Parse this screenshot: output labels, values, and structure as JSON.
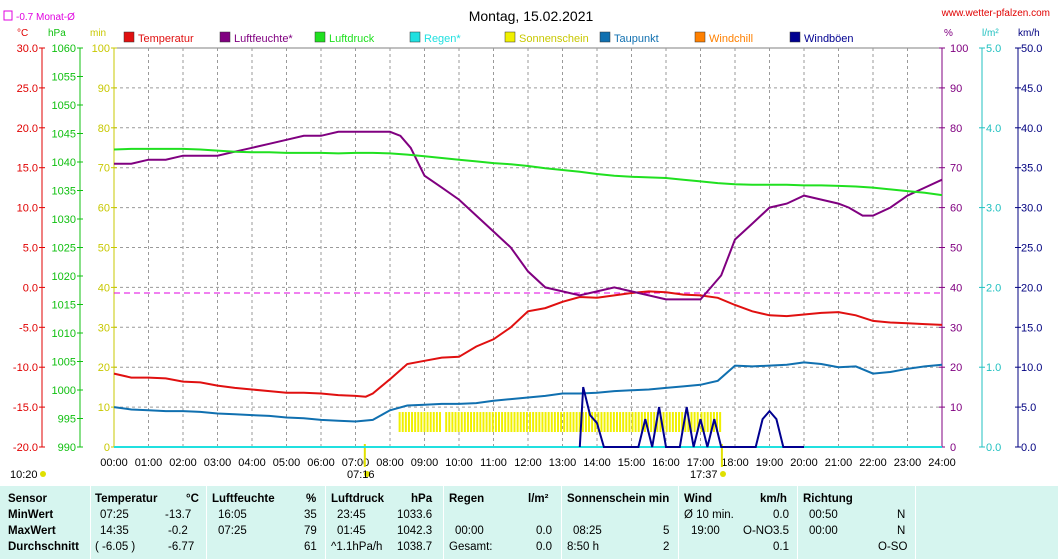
{
  "header": {
    "title": "Montag, 15.02.2021",
    "site": "www.wetter-pfalzen.com",
    "monthly_avg_label": "-0.7 Monat-Ø",
    "unit_temp": "°C",
    "unit_press": "hPa",
    "unit_min": "min",
    "unit_pct": "%",
    "unit_rain": "l/m²",
    "unit_wind": "km/h",
    "sunrise": "07:16",
    "sunset": "17:37"
  },
  "colors": {
    "temperature": "#e01010",
    "humidity": "#800080",
    "pressure": "#20e020",
    "rain": "#20e0e0",
    "sun": "#f0f000",
    "dewpoint": "#1070b0",
    "windchill": "#ff8000",
    "gusts": "#000090",
    "monthly_avg": "#e000e0"
  },
  "legend": [
    {
      "label": "Temperatur",
      "color": "#e01010"
    },
    {
      "label": "Luftfeuchte*",
      "color": "#800080"
    },
    {
      "label": "Luftdruck",
      "color": "#20e020"
    },
    {
      "label": "Regen*",
      "color": "#20e0e0"
    },
    {
      "label": "Sonnenschein",
      "color": "#f0f000"
    },
    {
      "label": "Taupunkt",
      "color": "#1070b0"
    },
    {
      "label": "Windchill",
      "color": "#ff8000"
    },
    {
      "label": "Windböen",
      "color": "#000090"
    }
  ],
  "chart_data": {
    "type": "line",
    "title": "Montag, 15.02.2021",
    "x_ticks": [
      "00:00",
      "01:00",
      "02:00",
      "03:00",
      "04:00",
      "05:00",
      "06:00",
      "07:00",
      "08:00",
      "09:00",
      "10:00",
      "11:00",
      "12:00",
      "13:00",
      "14:00",
      "15:00",
      "16:00",
      "17:00",
      "18:00",
      "19:00",
      "20:00",
      "21:00",
      "22:00",
      "23:00",
      "24:00"
    ],
    "axes": {
      "temp_c": {
        "range": [
          -20,
          30
        ],
        "ticks": [
          "30.0",
          "25.0",
          "20.0",
          "15.0",
          "10.0",
          "5.0",
          "0.0",
          "-5.0",
          "-10.0",
          "-15.0",
          "-20.0"
        ]
      },
      "pressure_hpa": {
        "range": [
          990,
          1060
        ],
        "ticks": [
          "1060",
          "1055",
          "1050",
          "1045",
          "1040",
          "1035",
          "1030",
          "1025",
          "1020",
          "1015",
          "1010",
          "1005",
          "1000",
          "995",
          "990"
        ]
      },
      "sun_min": {
        "range": [
          0,
          100
        ],
        "ticks": [
          "100",
          "90",
          "80",
          "70",
          "60",
          "50",
          "40",
          "30",
          "20",
          "10",
          "0"
        ]
      },
      "humidity_pct": {
        "range": [
          0,
          100
        ],
        "ticks": [
          "100",
          "90",
          "80",
          "70",
          "60",
          "50",
          "40",
          "30",
          "20",
          "10",
          "0"
        ]
      },
      "rain_lm2": {
        "range": [
          0,
          5
        ],
        "ticks": [
          "5.0",
          "4.0",
          "3.0",
          "2.0",
          "1.0",
          "0.0"
        ]
      },
      "wind_kmh": {
        "range": [
          0,
          50
        ],
        "ticks": [
          "50.0",
          "45.0",
          "40.0",
          "35.0",
          "30.0",
          "25.0",
          "20.0",
          "15.0",
          "10.0",
          "5.0",
          "0.0"
        ]
      }
    },
    "monthly_avg_temp": -0.7,
    "series": [
      {
        "name": "Temperatur",
        "axis": "temp_c",
        "x": [
          0,
          0.5,
          1,
          1.5,
          2,
          2.5,
          3,
          3.5,
          4,
          4.5,
          5,
          5.5,
          6,
          6.5,
          7,
          7.3,
          7.5,
          8,
          8.5,
          9,
          9.5,
          10,
          10.5,
          11,
          11.5,
          12,
          12.5,
          13,
          13.5,
          14,
          14.5,
          15,
          15.5,
          16,
          16.5,
          17,
          17.5,
          18,
          18.5,
          19,
          19.5,
          20,
          20.5,
          21,
          21.5,
          22,
          22.5,
          23,
          23.5,
          24
        ],
        "y": [
          -10.8,
          -11.3,
          -11.3,
          -11.4,
          -11.8,
          -11.9,
          -12.3,
          -12.6,
          -12.8,
          -13.0,
          -13.2,
          -13.2,
          -13.3,
          -13.5,
          -13.6,
          -13.7,
          -13.3,
          -11.5,
          -9.6,
          -9.2,
          -8.8,
          -8.7,
          -7.4,
          -6.5,
          -5.0,
          -3.0,
          -2.6,
          -1.8,
          -1.2,
          -1.3,
          -1.0,
          -0.7,
          -0.5,
          -0.6,
          -0.9,
          -1.0,
          -1.3,
          -2.2,
          -3.0,
          -3.5,
          -3.6,
          -3.4,
          -3.2,
          -3.1,
          -3.5,
          -4.2,
          -4.4,
          -4.5,
          -4.6,
          -4.7
        ]
      },
      {
        "name": "Luftfeuchte*",
        "axis": "humidity_pct",
        "x": [
          0,
          0.5,
          1,
          1.5,
          2,
          2.5,
          3,
          3.5,
          4,
          4.5,
          5,
          5.5,
          6,
          6.5,
          7,
          7.5,
          8,
          8.3,
          8.6,
          9,
          9.5,
          10,
          10.5,
          11,
          11.5,
          12,
          12.5,
          13,
          13.5,
          14,
          14.5,
          15,
          15.5,
          16,
          16.5,
          17,
          17.3,
          17.6,
          18,
          18.5,
          19,
          19.5,
          20,
          20.5,
          21,
          21.3,
          21.7,
          22,
          22.5,
          23,
          23.5,
          24
        ],
        "y": [
          71,
          71,
          72,
          72,
          73,
          73,
          73,
          74,
          75,
          76,
          77,
          78,
          78,
          79,
          79,
          79,
          79,
          78,
          75,
          68,
          65,
          62,
          58,
          54,
          50,
          44,
          40,
          39,
          38,
          39,
          40,
          39,
          38,
          37,
          37,
          37,
          40,
          43,
          52,
          56,
          60,
          61,
          63,
          62,
          61,
          60,
          58,
          58,
          60,
          63,
          65,
          67
        ]
      },
      {
        "name": "Luftdruck",
        "axis": "pressure_hpa",
        "x": [
          0,
          0.5,
          1,
          1.5,
          2,
          2.5,
          3,
          3.5,
          4,
          4.5,
          5,
          5.5,
          6,
          6.5,
          7,
          7.5,
          8,
          8.5,
          9,
          9.5,
          10,
          10.5,
          11,
          11.5,
          12,
          12.5,
          13,
          13.5,
          14,
          14.5,
          15,
          15.5,
          16,
          16.5,
          17,
          17.5,
          18,
          18.5,
          19,
          19.5,
          20,
          20.5,
          21,
          21.5,
          22,
          22.5,
          23,
          23.5,
          24
        ],
        "y": [
          1042.2,
          1042.3,
          1042.3,
          1042.3,
          1042.3,
          1042.2,
          1042.0,
          1041.8,
          1041.7,
          1041.7,
          1041.6,
          1041.6,
          1041.6,
          1041.5,
          1041.6,
          1041.6,
          1041.5,
          1041.3,
          1041.0,
          1040.7,
          1040.4,
          1040.1,
          1039.8,
          1039.6,
          1039.3,
          1038.9,
          1038.6,
          1038.3,
          1037.9,
          1037.6,
          1037.4,
          1037.3,
          1037.2,
          1036.9,
          1036.6,
          1036.3,
          1036.1,
          1036.0,
          1036.0,
          1036.0,
          1035.9,
          1035.9,
          1035.8,
          1035.7,
          1035.5,
          1035.2,
          1034.9,
          1034.6,
          1034.2
        ]
      },
      {
        "name": "Taupunkt",
        "axis": "temp_c",
        "x": [
          0,
          0.5,
          1,
          1.5,
          2,
          2.5,
          3,
          3.5,
          4,
          4.5,
          5,
          5.5,
          6,
          6.5,
          7,
          7.5,
          8,
          8.5,
          9,
          9.5,
          10,
          10.5,
          11,
          11.5,
          12,
          12.5,
          13,
          13.5,
          14,
          14.5,
          15,
          15.5,
          16,
          16.5,
          17,
          17.5,
          18,
          18.5,
          19,
          19.5,
          20,
          20.5,
          21,
          21.5,
          22,
          22.5,
          23,
          23.5,
          24
        ],
        "y": [
          -15.0,
          -15.3,
          -15.4,
          -15.5,
          -15.5,
          -15.6,
          -15.8,
          -15.9,
          -16.0,
          -16.1,
          -16.3,
          -16.4,
          -16.6,
          -16.7,
          -16.8,
          -16.6,
          -15.4,
          -14.8,
          -14.7,
          -14.6,
          -14.6,
          -14.5,
          -14.2,
          -14.0,
          -13.8,
          -13.6,
          -13.3,
          -13.3,
          -13.2,
          -13.0,
          -12.9,
          -12.8,
          -12.6,
          -12.4,
          -12.2,
          -11.7,
          -9.8,
          -9.9,
          -9.8,
          -9.7,
          -9.4,
          -9.6,
          -10.0,
          -9.9,
          -10.8,
          -10.6,
          -10.2,
          -9.9,
          -9.7
        ]
      },
      {
        "name": "Windböen",
        "axis": "wind_kmh",
        "x": [
          13.5,
          13.6,
          13.8,
          14,
          14.2,
          14.4,
          14.6,
          14.8,
          15,
          15.2,
          15.4,
          15.6,
          15.8,
          16,
          16.2,
          16.4,
          16.6,
          16.8,
          17,
          17.2,
          17.4,
          17.6,
          17.8,
          18,
          18.2,
          18.4,
          18.6,
          18.8,
          19,
          19.2,
          19.4,
          19.6,
          20
        ],
        "y": [
          0,
          7.5,
          4.0,
          3.0,
          0,
          0,
          0,
          0,
          0,
          0,
          3.5,
          0,
          5.0,
          0,
          0,
          0,
          5.0,
          0,
          3.5,
          0,
          3.5,
          0,
          0,
          0,
          0,
          0,
          0,
          3.5,
          4.5,
          3.5,
          0,
          0,
          0
        ]
      }
    ],
    "sunshine_blocks": [
      [
        8.25,
        9.5
      ],
      [
        9.6,
        16.9
      ],
      [
        17.0,
        17.55
      ]
    ]
  },
  "table": {
    "headers": {
      "sensor": "Sensor",
      "temp": "Temperatur",
      "temp_unit": "°C",
      "hum": "Luftfeuchte",
      "hum_unit": "%",
      "press": "Luftdruck",
      "press_unit": "hPa",
      "rain": "Regen",
      "rain_unit": "l/m²",
      "sun": "Sonnenschein min",
      "wind": "Wind",
      "wind_unit": "km/h",
      "dir": "Richtung"
    },
    "rows": [
      {
        "label": "MinWert",
        "t_time": "07:25",
        "t_val": "-13.7",
        "h_time": "16:05",
        "h_val": "35",
        "p_time": "23:45",
        "p_val": "1033.6",
        "r_time": "",
        "r_val": "",
        "s_time": "",
        "s_val": "",
        "w_time": "Ø 10 min.",
        "w_val": "0.0",
        "d_time": "00:50",
        "d_val": "N"
      },
      {
        "label": "MaxWert",
        "t_time": "14:35",
        "t_val": "-0.2",
        "h_time": "07:25",
        "h_val": "79",
        "p_time": "01:45",
        "p_val": "1042.3",
        "r_time": "00:00",
        "r_val": "0.0",
        "s_time": "08:25",
        "s_val": "5",
        "w_time": "19:00",
        "w_dir": "O-NO",
        "w_val": "3.5",
        "d_time": "00:00",
        "d_val": "N"
      },
      {
        "label": "Durchschnitt",
        "t_time": "( -6.05 )",
        "t_val": "-6.77",
        "h_time": "",
        "h_val": "61",
        "p_time": "^1.1hPa/h",
        "p_val": "1038.7",
        "r_time": "Gesamt:",
        "r_val": "0.0",
        "s_time": "8:50 h",
        "s_val": "2",
        "w_time": "",
        "w_val": "0.1",
        "d_time": "",
        "d_val": "O-SO"
      }
    ]
  }
}
